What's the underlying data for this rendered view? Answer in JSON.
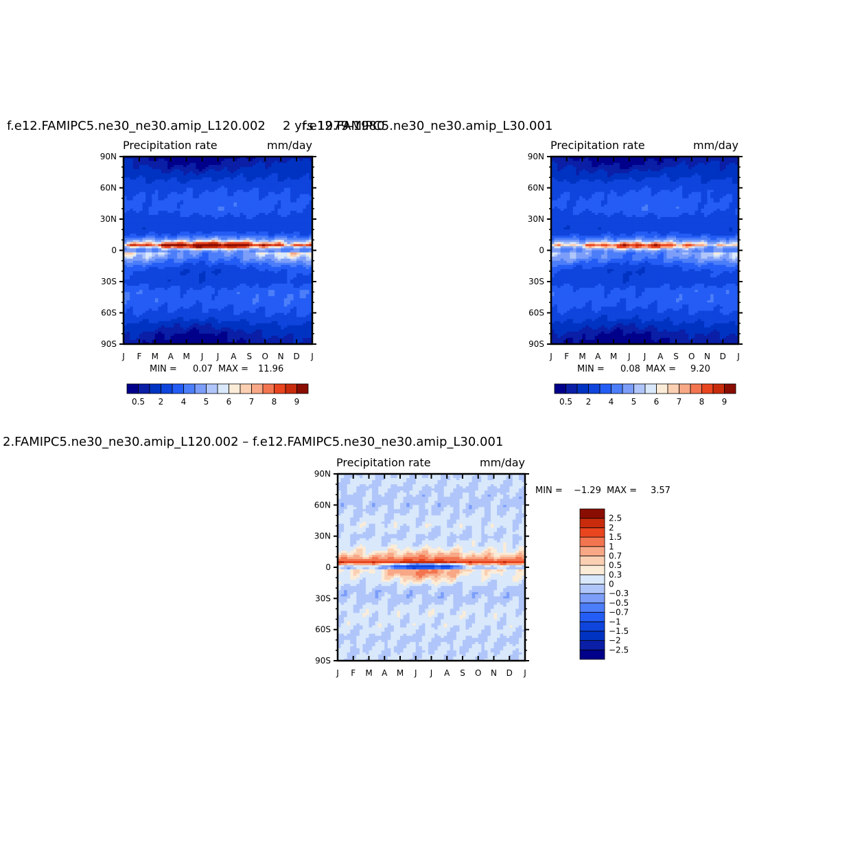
{
  "titles": {
    "left_case": "f.e12.FAMIPC5.ne30_ne30.amip_L120.002",
    "overlap_text": "f.e12.FAMIPC5.ne30_ne30.amip_L30.001",
    "years": "2 yrs 1979-1980",
    "diff_case": "2.FAMIPC5.ne30_ne30.amip_L120.002  –  f.e12.FAMIPC5.ne30_ne30.amip_L30.001"
  },
  "chart_data": [
    {
      "type": "heatmap",
      "panel": "L120",
      "title": "Precipitation  rate",
      "units": "mm/day",
      "xlabel": "",
      "ylabel": "",
      "x_ticks": [
        "J",
        "F",
        "M",
        "A",
        "M",
        "J",
        "J",
        "A",
        "S",
        "O",
        "N",
        "D",
        "J"
      ],
      "y_ticks": [
        "90N",
        "60N",
        "30N",
        "0",
        "30S",
        "60S",
        "90S"
      ],
      "ylim": [
        -90,
        90
      ],
      "stats": {
        "min_label": "MIN =",
        "min": "0.07",
        "max_label": "MAX =",
        "max": "11.96"
      },
      "colorbar": {
        "orientation": "horizontal",
        "levels": [
          0.2,
          0.5,
          1,
          2,
          3,
          4,
          5,
          5.5,
          6,
          6.5,
          7,
          7.5,
          8,
          9,
          10
        ],
        "labels": [
          "0.5",
          "2",
          "4",
          "5",
          "6",
          "7",
          "8",
          "9"
        ],
        "colors": [
          "#00008a",
          "#0a1ea6",
          "#0033c2",
          "#0f45dd",
          "#245df5",
          "#4c7ef9",
          "#7c9ef9",
          "#b0c6fa",
          "#d9e8fb",
          "#fbecd8",
          "#fbcfb2",
          "#f8a886",
          "#f37550",
          "#e9451f",
          "#c82c0c",
          "#8a0d02"
        ]
      },
      "field": {
        "lats": [
          90,
          80,
          70,
          60,
          50,
          40,
          30,
          20,
          15,
          10,
          7,
          5,
          3,
          0,
          -3,
          -6,
          -10,
          -15,
          -20,
          -30,
          -40,
          -50,
          -60,
          -70,
          -80,
          -90
        ],
        "base": [
          0.1,
          0.4,
          0.8,
          1.6,
          2.2,
          2.4,
          1.5,
          1.3,
          2.2,
          4.5,
          7.2,
          9.5,
          7.0,
          3.6,
          5.0,
          4.6,
          3.5,
          2.3,
          1.5,
          1.4,
          2.6,
          2.5,
          1.8,
          0.8,
          0.3,
          0.1
        ],
        "north_shift": [
          0,
          0,
          0.2,
          0.3,
          0.4,
          0.5,
          0.3,
          0.3,
          0.4,
          0.5,
          1.5,
          2.0,
          2.5,
          1.0,
          -1.2,
          -1.0,
          -0.8,
          -0.5,
          -0.3,
          0,
          0,
          0,
          0,
          0,
          0,
          0
        ],
        "month_means": [
          0.3,
          0.2,
          0,
          -0.1,
          -0.2,
          -0.2,
          -0.1,
          0,
          0.1,
          0.2,
          0.3,
          0.3,
          0.3
        ]
      }
    },
    {
      "type": "heatmap",
      "panel": "L30",
      "title": "Precipitation  rate",
      "units": "mm/day",
      "xlabel": "",
      "ylabel": "",
      "x_ticks": [
        "J",
        "F",
        "M",
        "A",
        "M",
        "J",
        "J",
        "A",
        "S",
        "O",
        "N",
        "D",
        "J"
      ],
      "y_ticks": [
        "90N",
        "60N",
        "30N",
        "0",
        "30S",
        "60S",
        "90S"
      ],
      "ylim": [
        -90,
        90
      ],
      "stats": {
        "min_label": "MIN =",
        "min": "0.08",
        "max_label": "MAX =",
        "max": "9.20"
      },
      "colorbar": {
        "orientation": "horizontal",
        "levels": [
          0.2,
          0.5,
          1,
          2,
          3,
          4,
          5,
          5.5,
          6,
          6.5,
          7,
          7.5,
          8,
          9,
          10
        ],
        "labels": [
          "0.5",
          "2",
          "4",
          "5",
          "6",
          "7",
          "8",
          "9"
        ],
        "colors": [
          "#00008a",
          "#0a1ea6",
          "#0033c2",
          "#0f45dd",
          "#245df5",
          "#4c7ef9",
          "#7c9ef9",
          "#b0c6fa",
          "#d9e8fb",
          "#fbecd8",
          "#fbcfb2",
          "#f8a886",
          "#f37550",
          "#e9451f",
          "#c82c0c",
          "#8a0d02"
        ]
      },
      "field": {
        "lats": [
          90,
          80,
          70,
          60,
          50,
          40,
          30,
          20,
          15,
          10,
          7,
          5,
          3,
          0,
          -3,
          -6,
          -10,
          -15,
          -20,
          -30,
          -40,
          -50,
          -60,
          -70,
          -80,
          -90
        ],
        "base": [
          0.1,
          0.4,
          0.8,
          1.6,
          2.2,
          2.4,
          1.5,
          1.3,
          2.0,
          3.8,
          6.0,
          7.6,
          6.2,
          3.8,
          4.4,
          4.2,
          3.3,
          2.2,
          1.5,
          1.4,
          2.5,
          2.4,
          1.7,
          0.8,
          0.3,
          0.1
        ],
        "north_shift": [
          0,
          0,
          0.2,
          0.3,
          0.4,
          0.5,
          0.3,
          0.3,
          0.4,
          0.5,
          1.2,
          1.6,
          2.0,
          0.8,
          -1.0,
          -0.9,
          -0.7,
          -0.5,
          -0.3,
          0,
          0,
          0,
          0,
          0,
          0,
          0
        ],
        "month_means": [
          0.2,
          0.1,
          0,
          -0.1,
          -0.2,
          -0.2,
          -0.1,
          0,
          0.1,
          0.2,
          0.2,
          0.2,
          0.2
        ]
      }
    },
    {
      "type": "heatmap",
      "panel": "difference",
      "title": "Precipitation  rate",
      "units": "mm/day",
      "xlabel": "",
      "ylabel": "",
      "x_ticks": [
        "J",
        "F",
        "M",
        "A",
        "M",
        "J",
        "J",
        "A",
        "S",
        "O",
        "N",
        "D",
        "J"
      ],
      "y_ticks": [
        "90N",
        "60N",
        "30N",
        "0",
        "30S",
        "60S",
        "90S"
      ],
      "ylim": [
        -90,
        90
      ],
      "stats": {
        "min_label": "MIN =",
        "min": "−1.29",
        "max_label": "MAX =",
        "max": "3.57"
      },
      "colorbar": {
        "orientation": "vertical",
        "levels": [
          -2.5,
          -2,
          -1.5,
          -1,
          -0.7,
          -0.5,
          -0.3,
          0,
          0.3,
          0.5,
          0.7,
          1,
          1.5,
          2,
          2.5
        ],
        "labels": [
          "−2.5",
          "−2",
          "−1.5",
          "−1",
          "−0.7",
          "−0.5",
          "−0.3",
          "0",
          "0.3",
          "0.5",
          "0.7",
          "1",
          "1.5",
          "2",
          "2.5"
        ],
        "colors": [
          "#00008a",
          "#0a1ea6",
          "#0033c2",
          "#0f45dd",
          "#245df5",
          "#4c7ef9",
          "#7c9ef9",
          "#b0c6fa",
          "#d9e8fb",
          "#fbecd8",
          "#fbcfb2",
          "#f8a886",
          "#f37550",
          "#e9451f",
          "#c82c0c",
          "#8a0d02"
        ]
      },
      "field": {
        "lats": [
          90,
          80,
          70,
          60,
          50,
          40,
          30,
          20,
          15,
          10,
          7,
          5,
          3,
          0,
          -3,
          -6,
          -10,
          -15,
          -20,
          -30,
          -40,
          -50,
          -60,
          -70,
          -80,
          -90
        ],
        "base": [
          0.05,
          0.02,
          -0.05,
          -0.1,
          0.05,
          0.1,
          -0.05,
          0.2,
          0.35,
          0.7,
          1.2,
          1.8,
          0.8,
          -0.3,
          0.4,
          0.3,
          0.2,
          0.1,
          -0.1,
          -0.1,
          0.1,
          0.1,
          0.05,
          -0.05,
          0.02,
          0.03
        ],
        "north_shift": [
          0,
          0,
          0,
          0,
          0,
          0,
          0,
          0,
          0.2,
          0.3,
          0.3,
          0.4,
          -1.2,
          -1.5,
          0.6,
          0.8,
          0.5,
          0.2,
          0,
          0,
          0,
          0,
          0,
          0,
          0,
          0
        ],
        "month_means": [
          0,
          0,
          0,
          0,
          0,
          0,
          0,
          0,
          0,
          0,
          0,
          0,
          0
        ]
      }
    }
  ]
}
